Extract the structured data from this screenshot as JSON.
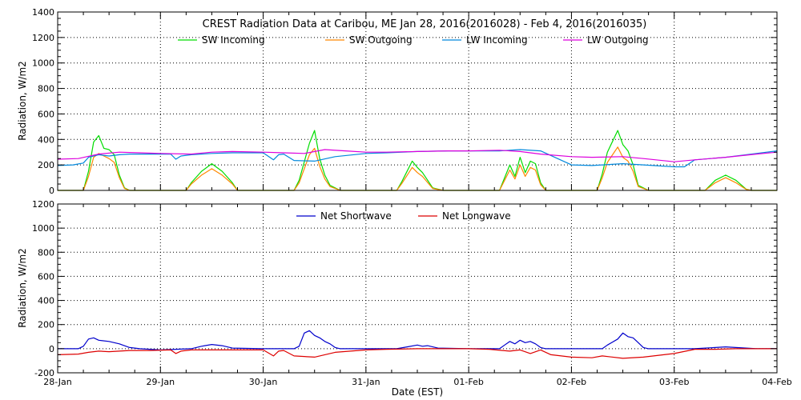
{
  "chart_data": [
    {
      "type": "line",
      "title": "CREST Radiation Data at Caribou, ME   Jan 28, 2016(2016028) - Feb  4, 2016(2016035)",
      "ylabel": "Radiation, W/m2",
      "xlabel": "",
      "ylim": [
        0,
        1400
      ],
      "yticks": [
        0,
        200,
        400,
        600,
        800,
        1000,
        1200,
        1400
      ],
      "xlim": [
        0,
        7
      ],
      "grid": true,
      "legend_position": "top",
      "series": [
        {
          "name": "SW Incoming",
          "color": "#00dd00",
          "x": [
            0.0,
            0.25,
            0.3,
            0.35,
            0.4,
            0.45,
            0.5,
            0.55,
            0.6,
            0.65,
            0.7,
            0.75,
            0.8,
            1.0,
            1.25,
            1.3,
            1.4,
            1.5,
            1.6,
            1.7,
            1.75,
            2.0,
            2.3,
            2.35,
            2.45,
            2.5,
            2.55,
            2.6,
            2.65,
            2.75,
            3.0,
            3.3,
            3.35,
            3.45,
            3.5,
            3.55,
            3.65,
            3.75,
            4.0,
            4.3,
            4.35,
            4.4,
            4.45,
            4.5,
            4.55,
            4.6,
            4.65,
            4.7,
            4.75,
            5.0,
            5.25,
            5.3,
            5.35,
            5.45,
            5.5,
            5.55,
            5.6,
            5.65,
            5.75,
            6.0,
            6.3,
            6.4,
            6.5,
            6.6,
            6.7,
            6.75,
            7.0
          ],
          "values": [
            0,
            0,
            150,
            380,
            430,
            330,
            320,
            280,
            120,
            20,
            0,
            0,
            0,
            0,
            0,
            60,
            150,
            210,
            150,
            60,
            0,
            0,
            0,
            80,
            370,
            470,
            250,
            120,
            40,
            0,
            0,
            0,
            70,
            230,
            180,
            140,
            20,
            0,
            0,
            0,
            100,
            200,
            110,
            260,
            140,
            230,
            210,
            60,
            0,
            0,
            0,
            130,
            300,
            470,
            360,
            310,
            200,
            40,
            0,
            0,
            0,
            80,
            120,
            80,
            10,
            0,
            0
          ]
        },
        {
          "name": "SW Outgoing",
          "color": "#ff8800",
          "x": [
            0.0,
            0.25,
            0.3,
            0.35,
            0.4,
            0.45,
            0.5,
            0.55,
            0.6,
            0.65,
            0.7,
            0.75,
            0.8,
            1.0,
            1.25,
            1.3,
            1.4,
            1.5,
            1.6,
            1.7,
            1.75,
            2.0,
            2.3,
            2.35,
            2.45,
            2.5,
            2.55,
            2.6,
            2.65,
            2.75,
            3.0,
            3.3,
            3.35,
            3.45,
            3.5,
            3.55,
            3.65,
            3.75,
            4.0,
            4.3,
            4.35,
            4.4,
            4.45,
            4.5,
            4.55,
            4.6,
            4.65,
            4.7,
            4.75,
            5.0,
            5.25,
            5.3,
            5.35,
            5.45,
            5.5,
            5.55,
            5.6,
            5.65,
            5.75,
            6.0,
            6.3,
            6.4,
            6.5,
            6.6,
            6.7,
            6.75,
            7.0
          ],
          "values": [
            0,
            0,
            110,
            260,
            290,
            270,
            250,
            220,
            100,
            15,
            0,
            0,
            0,
            0,
            0,
            50,
            120,
            170,
            120,
            50,
            0,
            0,
            0,
            60,
            280,
            330,
            190,
            90,
            30,
            0,
            0,
            0,
            55,
            180,
            140,
            110,
            15,
            0,
            0,
            0,
            80,
            160,
            90,
            200,
            110,
            180,
            160,
            45,
            0,
            0,
            0,
            100,
            220,
            340,
            260,
            230,
            150,
            30,
            0,
            0,
            0,
            60,
            100,
            60,
            8,
            0,
            0
          ]
        },
        {
          "name": "LW Incoming",
          "color": "#0088dd",
          "x": [
            0.0,
            0.15,
            0.25,
            0.3,
            0.4,
            0.5,
            0.6,
            0.7,
            0.9,
            1.1,
            1.15,
            1.2,
            1.3,
            1.5,
            1.7,
            2.0,
            2.1,
            2.15,
            2.2,
            2.3,
            2.5,
            2.7,
            3.0,
            3.2,
            3.5,
            3.8,
            4.0,
            4.3,
            4.5,
            4.7,
            5.0,
            5.2,
            5.5,
            5.7,
            6.0,
            6.1,
            6.2,
            6.5,
            6.8,
            7.0
          ],
          "values": [
            195,
            200,
            215,
            260,
            280,
            270,
            280,
            285,
            285,
            285,
            245,
            270,
            280,
            290,
            295,
            295,
            240,
            280,
            285,
            235,
            230,
            265,
            290,
            295,
            305,
            310,
            310,
            310,
            320,
            310,
            200,
            195,
            210,
            200,
            185,
            185,
            240,
            260,
            290,
            310
          ]
        },
        {
          "name": "LW Outgoing",
          "color": "#dd00dd",
          "x": [
            0.0,
            0.2,
            0.4,
            0.6,
            0.8,
            1.0,
            1.3,
            1.5,
            1.7,
            2.0,
            2.2,
            2.4,
            2.6,
            2.8,
            3.0,
            3.2,
            3.5,
            3.8,
            4.0,
            4.3,
            4.5,
            4.7,
            5.0,
            5.2,
            5.5,
            5.7,
            6.0,
            6.2,
            6.5,
            6.8,
            7.0
          ],
          "values": [
            245,
            250,
            285,
            300,
            295,
            290,
            285,
            300,
            305,
            300,
            295,
            290,
            320,
            310,
            300,
            300,
            305,
            310,
            310,
            315,
            305,
            285,
            265,
            260,
            265,
            250,
            225,
            240,
            260,
            285,
            300
          ]
        }
      ]
    },
    {
      "type": "line",
      "ylabel": "Radiation, W/m2",
      "xlabel": "Date (EST)",
      "ylim": [
        -200,
        1200
      ],
      "yticks": [
        -200,
        0,
        200,
        400,
        600,
        800,
        1000,
        1200
      ],
      "xlim": [
        0,
        7
      ],
      "xticks": [
        "28-Jan",
        "29-Jan",
        "30-Jan",
        "31-Jan",
        "01-Feb",
        "02-Feb",
        "03-Feb",
        "04-Feb"
      ],
      "grid": true,
      "legend_position": "top",
      "series": [
        {
          "name": "Net Shortwave",
          "color": "#0000cc",
          "x": [
            0.0,
            0.2,
            0.25,
            0.3,
            0.35,
            0.4,
            0.5,
            0.6,
            0.7,
            0.8,
            1.0,
            1.3,
            1.4,
            1.5,
            1.6,
            1.7,
            2.0,
            2.3,
            2.35,
            2.4,
            2.45,
            2.5,
            2.55,
            2.6,
            2.65,
            2.7,
            2.75,
            3.0,
            3.3,
            3.4,
            3.5,
            3.55,
            3.6,
            3.7,
            4.0,
            4.3,
            4.35,
            4.4,
            4.45,
            4.5,
            4.55,
            4.6,
            4.65,
            4.7,
            4.75,
            5.0,
            5.3,
            5.35,
            5.45,
            5.5,
            5.55,
            5.6,
            5.65,
            5.7,
            5.75,
            6.0,
            6.2,
            6.3,
            6.4,
            6.5,
            6.6,
            6.7,
            6.8,
            7.0
          ],
          "values": [
            0,
            0,
            20,
            80,
            90,
            70,
            60,
            40,
            10,
            0,
            -10,
            0,
            20,
            35,
            25,
            5,
            0,
            0,
            20,
            130,
            150,
            110,
            90,
            60,
            40,
            10,
            0,
            0,
            0,
            15,
            30,
            20,
            25,
            5,
            0,
            0,
            30,
            60,
            40,
            70,
            50,
            60,
            40,
            10,
            0,
            0,
            0,
            30,
            80,
            130,
            100,
            90,
            50,
            10,
            0,
            0,
            0,
            5,
            10,
            15,
            10,
            5,
            0,
            0
          ]
        },
        {
          "name": "Net Longwave",
          "color": "#dd0000",
          "x": [
            0.0,
            0.2,
            0.3,
            0.4,
            0.5,
            0.6,
            0.7,
            0.9,
            1.1,
            1.15,
            1.2,
            1.3,
            1.5,
            1.7,
            2.0,
            2.1,
            2.15,
            2.2,
            2.3,
            2.5,
            2.7,
            3.0,
            3.2,
            3.5,
            3.8,
            4.0,
            4.2,
            4.4,
            4.5,
            4.6,
            4.7,
            4.8,
            5.0,
            5.2,
            5.3,
            5.5,
            5.7,
            6.0,
            6.2,
            6.4,
            6.6,
            6.8,
            7.0
          ],
          "values": [
            -50,
            -45,
            -30,
            -20,
            -25,
            -20,
            -15,
            -15,
            -10,
            -40,
            -20,
            -10,
            -10,
            -10,
            -10,
            -60,
            -20,
            -15,
            -60,
            -70,
            -30,
            -10,
            -5,
            0,
            0,
            0,
            -5,
            -20,
            -10,
            -40,
            -10,
            -50,
            -70,
            -75,
            -60,
            -80,
            -70,
            -40,
            -5,
            -5,
            0,
            0,
            0
          ]
        }
      ]
    }
  ]
}
